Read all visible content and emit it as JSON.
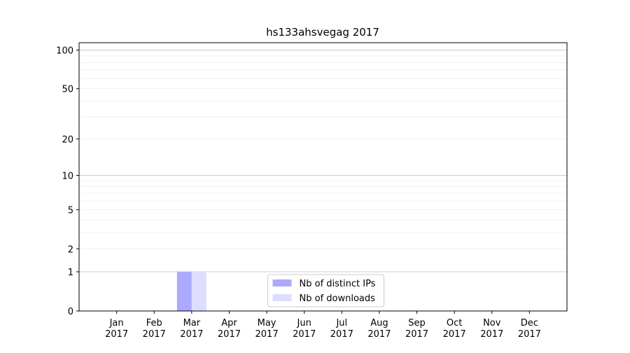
{
  "chart_data": {
    "type": "bar",
    "title": "hs133ahsvegag 2017",
    "categories": [
      "Jan 2017",
      "Feb 2017",
      "Mar 2017",
      "Apr 2017",
      "May 2017",
      "Jun 2017",
      "Jul 2017",
      "Aug 2017",
      "Sep 2017",
      "Oct 2017",
      "Nov 2017",
      "Dec 2017"
    ],
    "series": [
      {
        "name": "Nb of distinct IPs",
        "color": "#aaaaff",
        "values": [
          0,
          0,
          1,
          0,
          0,
          0,
          0,
          0,
          0,
          0,
          0,
          0
        ]
      },
      {
        "name": "Nb of downloads",
        "color": "#ddddff",
        "values": [
          0,
          0,
          1,
          0,
          0,
          0,
          0,
          0,
          0,
          0,
          0,
          0
        ]
      }
    ],
    "yscale": "log1p",
    "ylim": [
      0,
      114
    ],
    "yticks": [
      0,
      1,
      2,
      5,
      10,
      20,
      50,
      100
    ],
    "major_grid": [
      1,
      10,
      100
    ],
    "minor_grid": [
      2,
      3,
      4,
      5,
      6,
      7,
      8,
      9,
      20,
      30,
      40,
      50,
      60,
      70,
      80,
      90
    ],
    "grid": true,
    "legend": "lower center"
  }
}
